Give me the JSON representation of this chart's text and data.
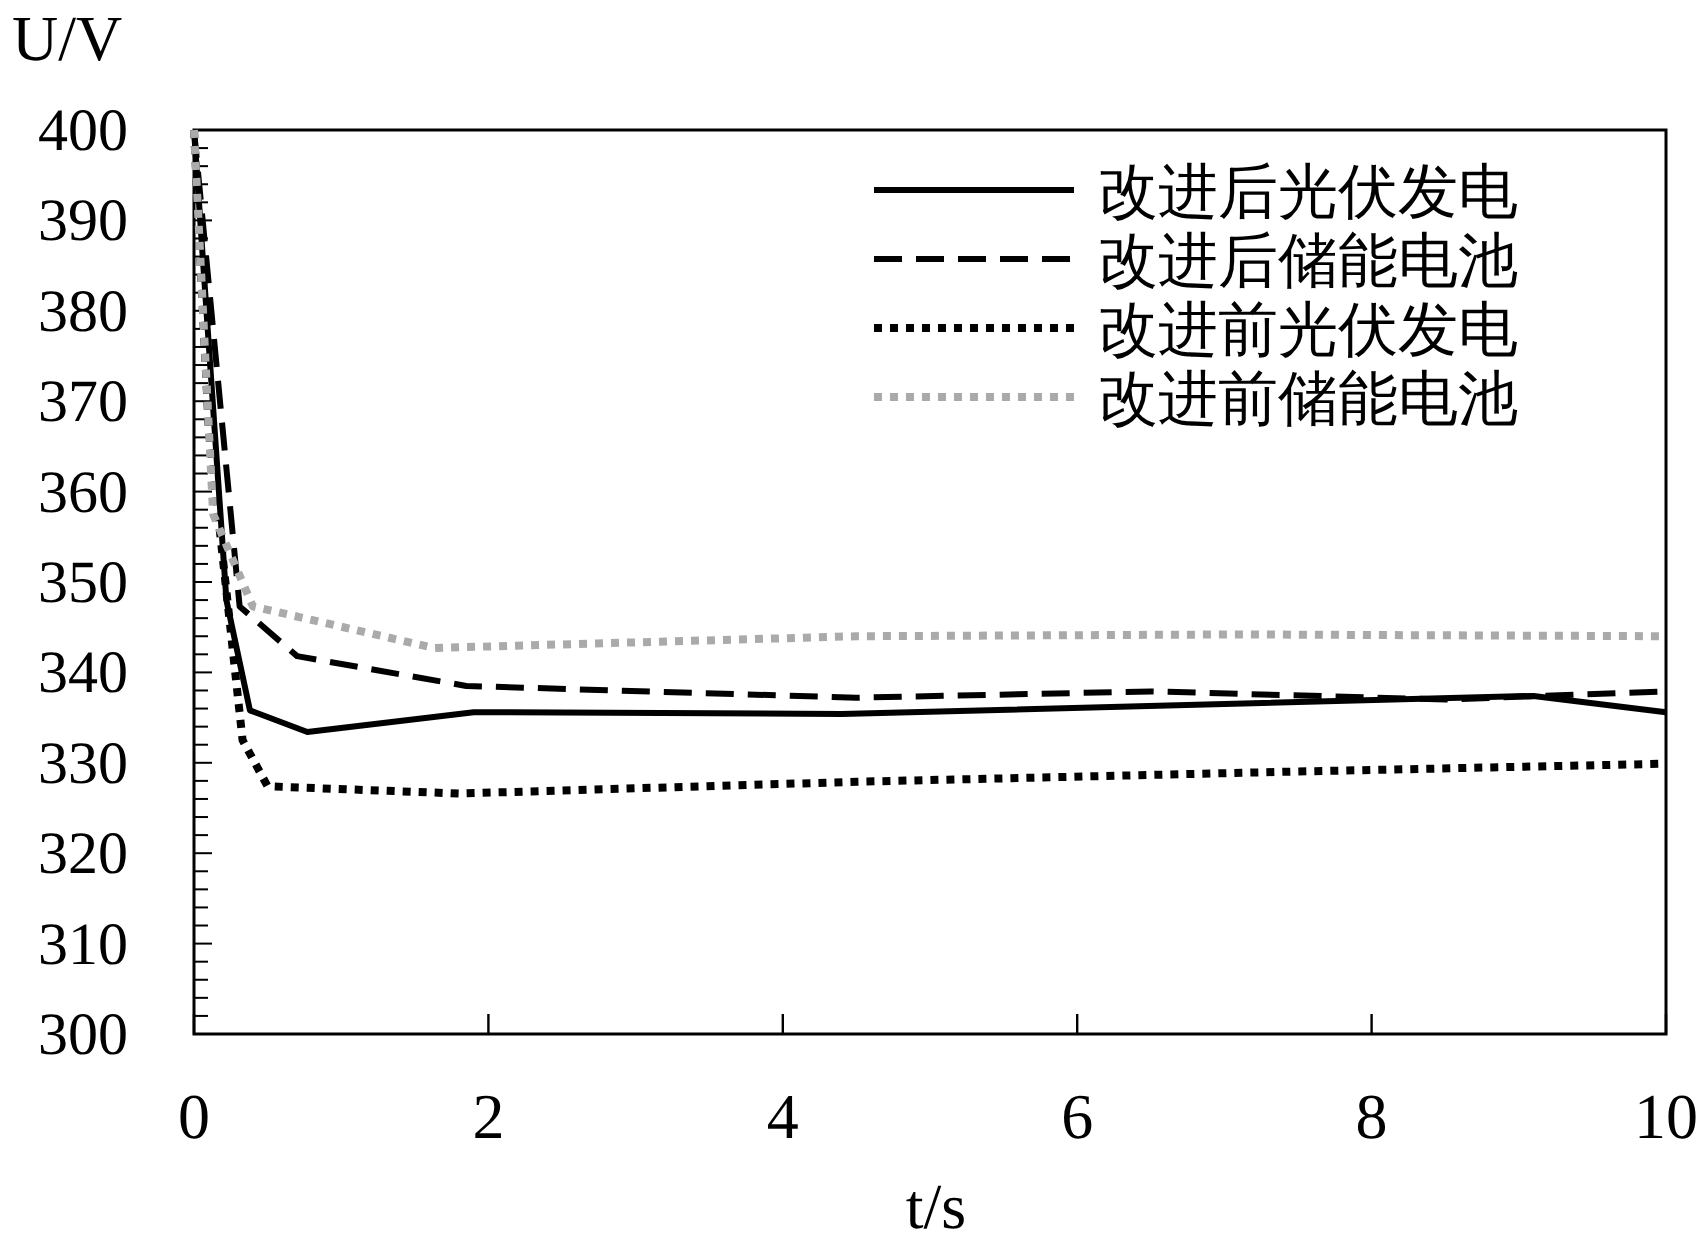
{
  "chart_data": {
    "type": "line",
    "xlabel": "t/s",
    "ylabel": "U/V",
    "xlim": [
      0,
      10
    ],
    "ylim": [
      300,
      400
    ],
    "xticks": [
      0,
      2,
      4,
      6,
      8,
      10
    ],
    "yticks": [
      300,
      {
        "value": 302,
        "label": null
      },
      {
        "value": 304,
        "label": null
      },
      {
        "value": 306,
        "label": null
      },
      {
        "value": 308,
        "label": null
      },
      310,
      {
        "value": 312,
        "label": null
      },
      {
        "value": 314,
        "label": null
      },
      {
        "value": 316,
        "label": null
      },
      {
        "value": 318,
        "label": null
      },
      320,
      {
        "value": 322,
        "label": null
      },
      {
        "value": 324,
        "label": null
      },
      {
        "value": 326,
        "label": null
      },
      {
        "value": 328,
        "label": null
      },
      330,
      {
        "value": 332,
        "label": null
      },
      {
        "value": 334,
        "label": null
      },
      {
        "value": 336,
        "label": null
      },
      {
        "value": 338,
        "label": null
      },
      340,
      {
        "value": 342,
        "label": null
      },
      {
        "value": 344,
        "label": null
      },
      {
        "value": 346,
        "label": null
      },
      {
        "value": 348,
        "label": null
      },
      350,
      {
        "value": 352,
        "label": null
      },
      {
        "value": 354,
        "label": null
      },
      {
        "value": 356,
        "label": null
      },
      {
        "value": 358,
        "label": null
      },
      360,
      {
        "value": 362,
        "label": null
      },
      {
        "value": 364,
        "label": null
      },
      {
        "value": 366,
        "label": null
      },
      {
        "value": 368,
        "label": null
      },
      370,
      {
        "value": 372,
        "label": null
      },
      {
        "value": 374,
        "label": null
      },
      {
        "value": 376,
        "label": null
      },
      {
        "value": 378,
        "label": null
      },
      380,
      {
        "value": 382,
        "label": null
      },
      {
        "value": 384,
        "label": null
      },
      {
        "value": 386,
        "label": null
      },
      {
        "value": 388,
        "label": null
      },
      390,
      {
        "value": 392,
        "label": null
      },
      {
        "value": 394,
        "label": null
      },
      {
        "value": 396,
        "label": null
      },
      {
        "value": 398,
        "label": null
      },
      400
    ],
    "legend": "top right",
    "series": [
      {
        "name": "改进后光伏发电",
        "color": "#000000",
        "line_style": "solid",
        "x": [
          0,
          0.22,
          0.38,
          0.77,
          1.9,
          4.4,
          9.1,
          10
        ],
        "values": [
          400,
          348,
          335.8,
          333.4,
          335.6,
          335.4,
          337.4,
          335.6
        ]
      },
      {
        "name": "改进后储能电池",
        "color": "#000000",
        "line_style": "dashed",
        "x": [
          0,
          0.31,
          0.7,
          1.85,
          4.5,
          6.5,
          8.5,
          10
        ],
        "values": [
          400,
          347.3,
          341.8,
          338.5,
          337.2,
          337.9,
          337,
          337.9
        ]
      },
      {
        "name": "改进前光伏发电",
        "color": "#000000",
        "line_style": "dotted",
        "x": [
          0,
          0.1,
          0.33,
          0.5,
          1.8,
          4.5,
          7.4,
          10
        ],
        "values": [
          400,
          367,
          332.5,
          327.4,
          326.6,
          327.9,
          329,
          329.9
        ]
      },
      {
        "name": "改进前储能电池",
        "color": "#aaaaaa",
        "line_style": "dotted",
        "x": [
          0,
          0.13,
          0.4,
          1.63,
          4.5,
          7.1,
          10
        ],
        "values": [
          400,
          357.5,
          347.3,
          342.7,
          344,
          344.2,
          344
        ]
      }
    ]
  }
}
